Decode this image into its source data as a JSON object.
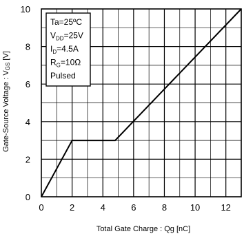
{
  "chart_data": {
    "type": "line",
    "xlabel": "Total Gate Charge : Qg  [nC]",
    "ylabel": "Gate-Source Voltage : VGS [V]",
    "ylabel_parts": {
      "main": "Gate-Source Voltage : V",
      "sub": "GS",
      "unit": " [V]"
    },
    "xlim": [
      0,
      13
    ],
    "ylim": [
      0,
      10
    ],
    "x_ticks": [
      0,
      2,
      4,
      6,
      8,
      10,
      12
    ],
    "y_ticks": [
      0,
      2,
      4,
      6,
      8,
      10
    ],
    "grid": true,
    "series": [
      {
        "x": [
          0,
          2,
          4.8,
          13
        ],
        "y": [
          0,
          3,
          3,
          10
        ]
      }
    ],
    "conditions": [
      {
        "main": "Ta=25ºC",
        "sub": "",
        "after": ""
      },
      {
        "main": "V",
        "sub": "DD",
        "after": "=25V"
      },
      {
        "main": "I",
        "sub": "D",
        "after": "=4.5A"
      },
      {
        "main": "R",
        "sub": "G",
        "after": "=10Ω"
      },
      {
        "main": "Pulsed",
        "sub": "",
        "after": ""
      }
    ],
    "legend_placement": "top-left"
  }
}
